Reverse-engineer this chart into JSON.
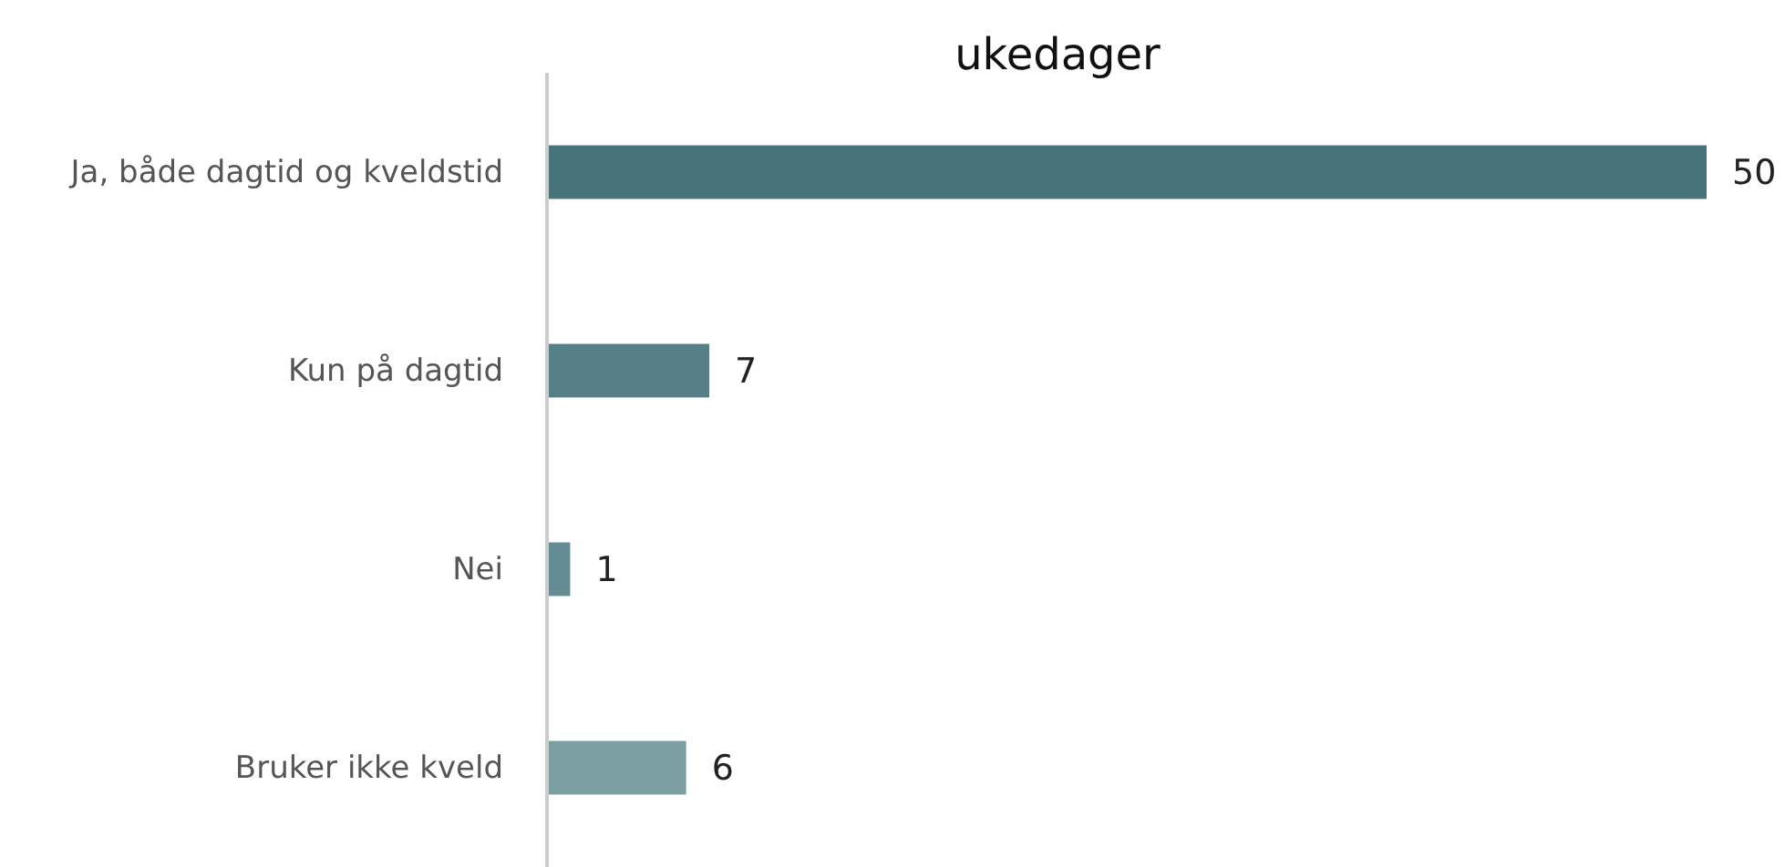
{
  "chart_data": {
    "type": "bar",
    "orientation": "horizontal",
    "title": "ukedager",
    "categories": [
      "Ja, både dagtid og kveldstid",
      "Kun på dagtid",
      "Nei",
      "Bruker ikke kveld"
    ],
    "values": [
      50,
      7,
      1,
      6
    ],
    "colors": [
      "#47737b",
      "#567f87",
      "#648c94",
      "#7a9ea2"
    ],
    "data_labels": true
  }
}
